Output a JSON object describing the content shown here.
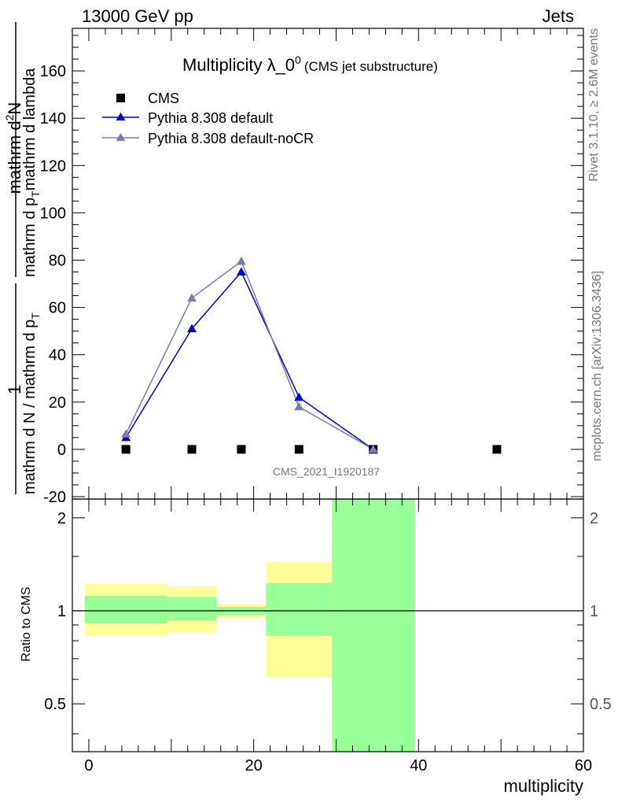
{
  "header": {
    "left": "13000 GeV pp",
    "right": "Jets"
  },
  "side_labels": {
    "rivet": "Rivet 3.1.10, ≥ 2.6M events",
    "mcplots": "mcplots.cern.ch [arXiv:1306.3436]"
  },
  "watermark": "CMS_2021_I1920187",
  "colors": {
    "cms": "#000000",
    "pythia_default": "#0000cc",
    "pythia_nocr": "#7b7bb0",
    "band_inner": "#99ff99",
    "band_outer": "#ffff99"
  },
  "chart_data": [
    {
      "type": "line",
      "title_main": "Multiplicity λ_0",
      "title_sup": "0",
      "title_note": "(CMS jet substructure)",
      "ylabel": {
        "numerator_1": "1",
        "denominator_1": "mathrm d N / mathrm d p",
        "sub_1": "T",
        "numerator_2": "mathrm d",
        "sup_2": "2",
        "numerator_2b": "N",
        "denominator_2a": "mathrm d p",
        "sub_2": "T",
        "denominator_2b": "mathrm d lambda"
      },
      "xlim": [
        -2,
        60
      ],
      "ylim": [
        -21,
        178
      ],
      "yticks": [
        -20,
        0,
        20,
        40,
        60,
        80,
        100,
        120,
        140,
        160
      ],
      "legend_position": "top-left",
      "series": [
        {
          "name": "CMS",
          "marker": "square",
          "x": [
            4.5,
            12.5,
            18.5,
            25.5,
            34.5,
            49.5
          ],
          "y": [
            0,
            0,
            0,
            0,
            0,
            0
          ]
        },
        {
          "name": "Pythia 8.308 default",
          "marker": "triangle",
          "x": [
            4.5,
            12.5,
            18.5,
            25.5,
            34.5
          ],
          "y": [
            5,
            51,
            75,
            22,
            0
          ]
        },
        {
          "name": "Pythia 8.308 default-noCR",
          "marker": "triangle",
          "x": [
            4.5,
            12.5,
            18.5,
            25.5,
            34.5
          ],
          "y": [
            6.5,
            64,
            79.5,
            18,
            0
          ]
        }
      ]
    },
    {
      "type": "area",
      "ylabel": "Ratio to CMS",
      "xlabel": "multiplicity",
      "xlim": [
        -2,
        60
      ],
      "ylim": [
        0.35,
        2.3
      ],
      "log_scale": true,
      "xticks": [
        0,
        20,
        40,
        60
      ],
      "yticks": [
        0.5,
        1,
        2
      ],
      "bins": [
        {
          "x_low": -0.5,
          "x_high": 9.5,
          "inner_low": 0.91,
          "inner_high": 1.12,
          "outer_low": 0.83,
          "outer_high": 1.22
        },
        {
          "x_low": 9.5,
          "x_high": 15.5,
          "inner_low": 0.93,
          "inner_high": 1.11,
          "outer_low": 0.85,
          "outer_high": 1.2
        },
        {
          "x_low": 15.5,
          "x_high": 21.5,
          "inner_low": 0.97,
          "inner_high": 1.03,
          "outer_low": 0.95,
          "outer_high": 1.05
        },
        {
          "x_low": 21.5,
          "x_high": 29.5,
          "inner_low": 0.83,
          "inner_high": 1.23,
          "outer_low": 0.61,
          "outer_high": 1.44
        },
        {
          "x_low": 29.5,
          "x_high": 39.5,
          "inner_low": 0.35,
          "inner_high": 2.3,
          "outer_low": 0.35,
          "outer_high": 2.3
        }
      ]
    }
  ]
}
